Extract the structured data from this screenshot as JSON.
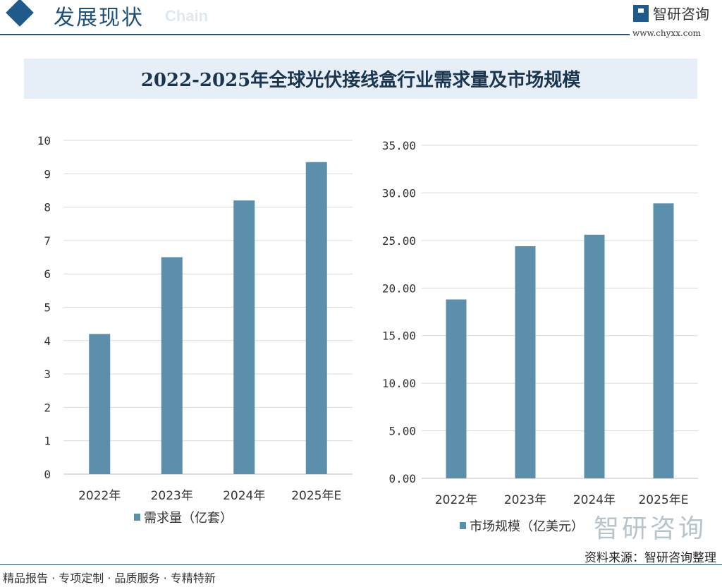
{
  "header": {
    "section_title": "发展现状",
    "watermark_word": "Chain",
    "brand": "智研咨询",
    "url": "www.chyxx.com"
  },
  "title": "2022-2025年全球光伏接线盒行业需求量及市场规模",
  "colors": {
    "bar": "#5b8fab",
    "grid": "#d9d9d9",
    "header": "#1f5a8a",
    "title_bg": "#e6eff7"
  },
  "chart_data": [
    {
      "type": "bar",
      "categories": [
        "2022年",
        "2023年",
        "2024年",
        "2025年E"
      ],
      "series": [
        {
          "name": "需求量（亿套）",
          "values": [
            4.2,
            6.5,
            8.2,
            9.35
          ]
        }
      ],
      "ylim": [
        0,
        10
      ],
      "yticks": [
        "0",
        "1",
        "2",
        "3",
        "4",
        "5",
        "6",
        "7",
        "8",
        "9",
        "10"
      ],
      "grid": true,
      "legend": "bottom"
    },
    {
      "type": "bar",
      "categories": [
        "2022年",
        "2023年",
        "2024年",
        "2025年E"
      ],
      "series": [
        {
          "name": "市场规模（亿美元）",
          "values": [
            18.8,
            24.4,
            25.6,
            28.9
          ]
        }
      ],
      "ylim": [
        0,
        35
      ],
      "yticks": [
        "0.00",
        "5.00",
        "10.00",
        "15.00",
        "20.00",
        "25.00",
        "30.00",
        "35.00"
      ],
      "grid": true,
      "legend": "bottom"
    }
  ],
  "footer": {
    "slogan": "精品报告 · 专项定制 · 品质服务 · 专精特新",
    "source": "资料来源：智研咨询整理",
    "watermark": "智研咨询"
  }
}
